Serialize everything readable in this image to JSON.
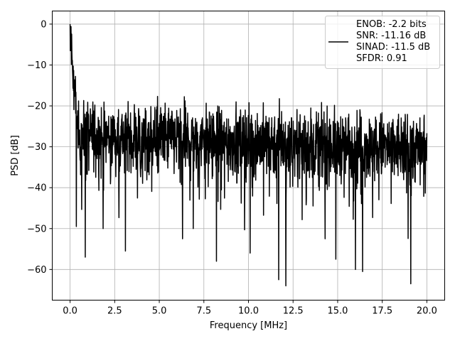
{
  "chart_data": {
    "type": "line",
    "xlabel": "Frequency [MHz]",
    "ylabel": "PSD [dB]",
    "xlim": [
      -1.0,
      21.0
    ],
    "ylim": [
      -67.5,
      3.2
    ],
    "xticks": [
      0.0,
      2.5,
      5.0,
      7.5,
      10.0,
      12.5,
      15.0,
      17.5,
      20.0
    ],
    "xtick_labels": [
      "0.0",
      "2.5",
      "5.0",
      "7.5",
      "10.0",
      "12.5",
      "15.0",
      "17.5",
      "20.0"
    ],
    "yticks": [
      0,
      -10,
      -20,
      -30,
      -40,
      -50,
      -60
    ],
    "ytick_labels": [
      "0",
      "−10",
      "−20",
      "−30",
      "−40",
      "−50",
      "−60"
    ],
    "grid": true,
    "legend_position": "top-right",
    "series": [
      {
        "name": "ENOB: -2.2 bits\nSNR: -11.16 dB\nSINAD: -11.5 dB\nSFDR: 0.91",
        "legend_lines": [
          "ENOB: -2.2 bits",
          "SNR: -11.16 dB",
          "SINAD: -11.5 dB",
          "SFDR: 0.91"
        ],
        "color": "#000000",
        "x_range": [
          0.0,
          20.0
        ],
        "points": 1600,
        "peak_at_dc": 0.0,
        "noise_floor_start": -27.0,
        "noise_floor_end": -30.5,
        "upper_envelope": -17.5,
        "min_dips": [
          {
            "x": 0.35,
            "y": -49.5
          },
          {
            "x": 0.85,
            "y": -57.0
          },
          {
            "x": 1.85,
            "y": -50.0
          },
          {
            "x": 3.1,
            "y": -55.5
          },
          {
            "x": 6.3,
            "y": -52.5
          },
          {
            "x": 6.9,
            "y": -50.0
          },
          {
            "x": 8.2,
            "y": -58.0
          },
          {
            "x": 10.1,
            "y": -56.0
          },
          {
            "x": 11.7,
            "y": -62.5
          },
          {
            "x": 12.1,
            "y": -64.0
          },
          {
            "x": 14.3,
            "y": -52.5
          },
          {
            "x": 14.9,
            "y": -57.5
          },
          {
            "x": 16.0,
            "y": -60.0
          },
          {
            "x": 16.4,
            "y": -60.5
          },
          {
            "x": 19.1,
            "y": -63.5
          }
        ]
      }
    ]
  }
}
